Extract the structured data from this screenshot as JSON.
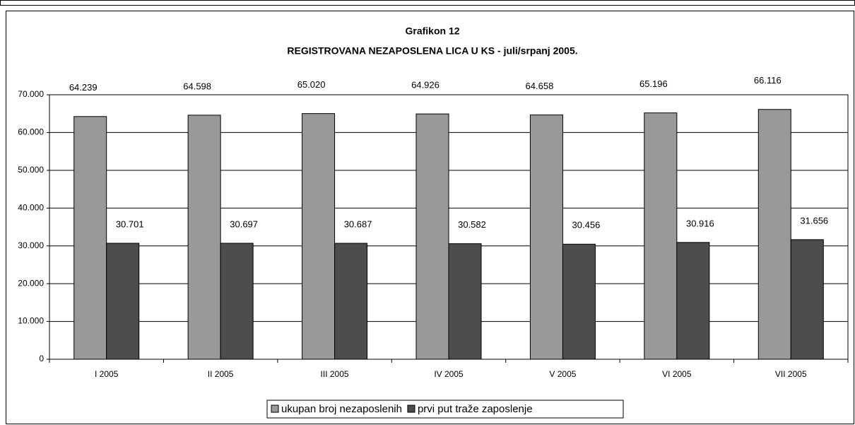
{
  "chart_data": {
    "type": "bar",
    "title": "Grafikon 12",
    "subtitle": "REGISTROVANA NEZAPOSLENA LICA U KS -  juli/srpanj 2005.",
    "categories": [
      "I 2005",
      "II 2005",
      "III 2005",
      "IV 2005",
      "V 2005",
      "VI 2005",
      "VII 2005"
    ],
    "series": [
      {
        "name": "ukupan broj nezaposlenih",
        "color": "#999999",
        "values": [
          64239,
          64598,
          65020,
          64926,
          64658,
          65196,
          66116
        ],
        "value_labels": [
          "64.239",
          "64.598",
          "65.020",
          "64.926",
          "64.658",
          "65.196",
          "66.116"
        ]
      },
      {
        "name": "prvi put traže zaposlenje",
        "color": "#4d4d4d",
        "values": [
          30701,
          30697,
          30687,
          30582,
          30456,
          30916,
          31656
        ],
        "value_labels": [
          "30.701",
          "30.697",
          "30.687",
          "30.582",
          "30.456",
          "30.916",
          "31.656"
        ]
      }
    ],
    "ylim": [
      0,
      70000
    ],
    "yticks": [
      0,
      {
        "value": 10000,
        "label": "10.000"
      },
      {
        "value": 20000,
        "label": "20.000"
      },
      {
        "value": 30000,
        "label": "30.000"
      },
      {
        "value": 40000,
        "label": "40.000"
      },
      {
        "value": 50000,
        "label": "50.000"
      },
      {
        "value": 60000,
        "label": "60.000"
      },
      {
        "value": 70000,
        "label": "70.000"
      }
    ],
    "grid": true,
    "legend": "bottom"
  }
}
